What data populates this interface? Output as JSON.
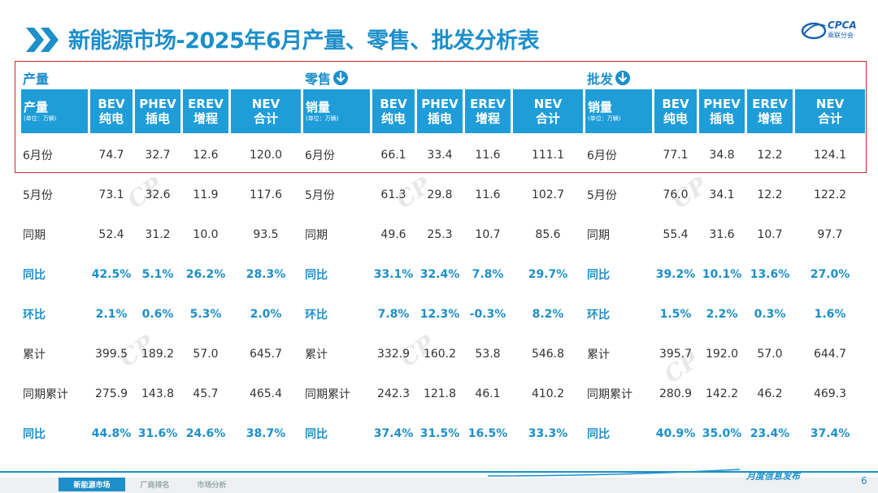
{
  "title": "新能源市场-2025年6月产量、零售、批发分析表",
  "logo": {
    "name": "CPCA",
    "sub": "乘联分会"
  },
  "colors": {
    "accent": "#1d8fc9",
    "header_bg": "#1e9dd8",
    "highlight": "#d0262f"
  },
  "sections": [
    {
      "title": "产量",
      "arrow": false,
      "header": {
        "first": "产量",
        "unit": "(单位：万辆)",
        "cols": [
          [
            "BEV",
            "纯电"
          ],
          [
            "PHEV",
            "插电"
          ],
          [
            "EREV",
            "增程"
          ],
          [
            "NEV",
            "合计"
          ]
        ]
      },
      "rows": [
        {
          "label": "6月份",
          "values": [
            "74.7",
            "32.7",
            "12.6",
            "120.0"
          ],
          "blue": false
        },
        {
          "label": "5月份",
          "values": [
            "73.1",
            "32.6",
            "11.9",
            "117.6"
          ],
          "blue": false
        },
        {
          "label": "同期",
          "values": [
            "52.4",
            "31.2",
            "10.0",
            "93.5"
          ],
          "blue": false
        },
        {
          "label": "同比",
          "values": [
            "42.5%",
            "5.1%",
            "26.2%",
            "28.3%"
          ],
          "blue": true
        },
        {
          "label": "环比",
          "values": [
            "2.1%",
            "0.6%",
            "5.3%",
            "2.0%"
          ],
          "blue": true
        },
        {
          "label": "累计",
          "values": [
            "399.5",
            "189.2",
            "57.0",
            "645.7"
          ],
          "blue": false
        },
        {
          "label": "同期累计",
          "values": [
            "275.9",
            "143.8",
            "45.7",
            "465.4"
          ],
          "blue": false
        },
        {
          "label": "同比",
          "values": [
            "44.8%",
            "31.6%",
            "24.6%",
            "38.7%"
          ],
          "blue": true
        }
      ]
    },
    {
      "title": "零售",
      "arrow": true,
      "header": {
        "first": "销量",
        "unit": "(单位：万辆)",
        "cols": [
          [
            "BEV",
            "纯电"
          ],
          [
            "PHEV",
            "插电"
          ],
          [
            "EREV",
            "增程"
          ],
          [
            "NEV",
            "合计"
          ]
        ]
      },
      "rows": [
        {
          "label": "6月份",
          "values": [
            "66.1",
            "33.4",
            "11.6",
            "111.1"
          ],
          "blue": false
        },
        {
          "label": "5月份",
          "values": [
            "61.3",
            "29.8",
            "11.6",
            "102.7"
          ],
          "blue": false
        },
        {
          "label": "同期",
          "values": [
            "49.6",
            "25.3",
            "10.7",
            "85.6"
          ],
          "blue": false
        },
        {
          "label": "同比",
          "values": [
            "33.1%",
            "32.4%",
            "7.8%",
            "29.7%"
          ],
          "blue": true
        },
        {
          "label": "环比",
          "values": [
            "7.8%",
            "12.3%",
            "-0.3%",
            "8.2%"
          ],
          "blue": true
        },
        {
          "label": "累计",
          "values": [
            "332.9",
            "160.2",
            "53.8",
            "546.8"
          ],
          "blue": false
        },
        {
          "label": "同期累计",
          "values": [
            "242.3",
            "121.8",
            "46.1",
            "410.2"
          ],
          "blue": false
        },
        {
          "label": "同比",
          "values": [
            "37.4%",
            "31.5%",
            "16.5%",
            "33.3%"
          ],
          "blue": true
        }
      ]
    },
    {
      "title": "批发",
      "arrow": true,
      "header": {
        "first": "销量",
        "unit": "(单位：万辆)",
        "cols": [
          [
            "BEV",
            "纯电"
          ],
          [
            "PHEV",
            "插电"
          ],
          [
            "EREV",
            "增程"
          ],
          [
            "NEV",
            "合计"
          ]
        ]
      },
      "rows": [
        {
          "label": "6月份",
          "values": [
            "77.1",
            "34.8",
            "12.2",
            "124.1"
          ],
          "blue": false
        },
        {
          "label": "5月份",
          "values": [
            "76.0",
            "34.1",
            "12.2",
            "122.2"
          ],
          "blue": false
        },
        {
          "label": "同期",
          "values": [
            "55.4",
            "31.6",
            "10.7",
            "97.7"
          ],
          "blue": false
        },
        {
          "label": "同比",
          "values": [
            "39.2%",
            "10.1%",
            "13.6%",
            "27.0%"
          ],
          "blue": true
        },
        {
          "label": "环比",
          "values": [
            "1.5%",
            "2.2%",
            "0.3%",
            "1.6%"
          ],
          "blue": true
        },
        {
          "label": "累计",
          "values": [
            "395.7",
            "192.0",
            "57.0",
            "644.7"
          ],
          "blue": false
        },
        {
          "label": "同期累计",
          "values": [
            "280.9",
            "142.2",
            "46.2",
            "469.3"
          ],
          "blue": false
        },
        {
          "label": "同比",
          "values": [
            "40.9%",
            "35.0%",
            "23.4%",
            "37.4%"
          ],
          "blue": true
        }
      ]
    }
  ],
  "footer": {
    "tabs": [
      {
        "label": "新能源市场",
        "active": true
      },
      {
        "label": "厂商排名",
        "active": false
      },
      {
        "label": "市场分析",
        "active": false
      }
    ],
    "text": "月度信息发布",
    "page": "6"
  }
}
